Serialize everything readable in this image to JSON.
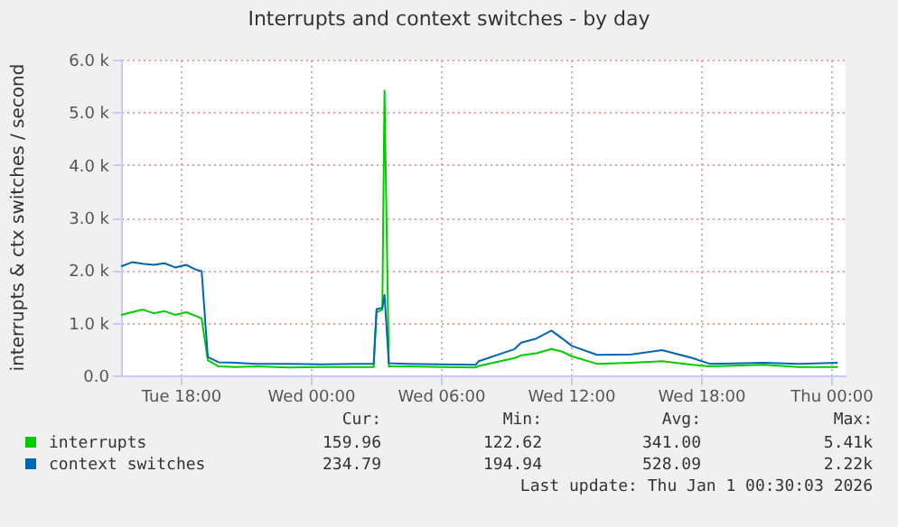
{
  "chart_data": {
    "type": "line",
    "title": "Interrupts and context switches - by day",
    "ylabel": "interrupts & ctx switches / second",
    "x": [
      "2025-12-30T15:15",
      "2025-12-30T15:45",
      "2025-12-30T16:15",
      "2025-12-30T16:45",
      "2025-12-30T17:15",
      "2025-12-30T17:45",
      "2025-12-30T18:15",
      "2025-12-30T18:45",
      "2025-12-30T18:58",
      "2025-12-30T19:15",
      "2025-12-30T19:45",
      "2025-12-30T20:30",
      "2025-12-30T21:30",
      "2025-12-30T23:00",
      "2025-12-31T00:30",
      "2025-12-31T02:00",
      "2025-12-31T02:54",
      "2025-12-31T03:02",
      "2025-12-31T03:18",
      "2025-12-31T03:24",
      "2025-12-31T03:36",
      "2025-12-31T04:30",
      "2025-12-31T06:00",
      "2025-12-31T07:36",
      "2025-12-31T07:45",
      "2025-12-31T09:24",
      "2025-12-31T09:42",
      "2025-12-31T10:24",
      "2025-12-31T11:06",
      "2025-12-31T11:36",
      "2025-12-31T12:03",
      "2025-12-31T13:12",
      "2025-12-31T14:48",
      "2025-12-31T16:12",
      "2025-12-31T17:36",
      "2025-12-31T18:24",
      "2025-12-31T20:54",
      "2025-12-31T22:30",
      "2026-01-01T00:18"
    ],
    "series": [
      {
        "name": "interrupts",
        "color": "#00cc00",
        "values": [
          1150,
          1200,
          1250,
          1180,
          1220,
          1150,
          1200,
          1120,
          1080,
          290,
          170,
          160,
          170,
          150,
          160,
          160,
          160,
          1200,
          1250,
          5410,
          170,
          170,
          160,
          150,
          180,
          330,
          380,
          420,
          500,
          450,
          360,
          220,
          240,
          270,
          200,
          170,
          200,
          160,
          160
        ]
      },
      {
        "name": "context switches",
        "color": "#0066b3",
        "values": [
          2070,
          2150,
          2120,
          2100,
          2130,
          2050,
          2100,
          2000,
          1980,
          350,
          250,
          240,
          220,
          220,
          210,
          220,
          220,
          1260,
          1280,
          1530,
          230,
          220,
          210,
          200,
          270,
          500,
          620,
          700,
          850,
          700,
          560,
          390,
          400,
          480,
          330,
          220,
          240,
          220,
          240
        ]
      }
    ],
    "xlim": [
      "2025-12-30T15:15",
      "2026-01-01T00:40"
    ],
    "xticks": [
      {
        "value": "2025-12-30T18:00",
        "label": "Tue 18:00"
      },
      {
        "value": "2025-12-31T00:00",
        "label": "Wed 00:00"
      },
      {
        "value": "2025-12-31T06:00",
        "label": "Wed 06:00"
      },
      {
        "value": "2025-12-31T12:00",
        "label": "Wed 12:00"
      },
      {
        "value": "2025-12-31T18:00",
        "label": "Wed 18:00"
      },
      {
        "value": "2026-01-01T00:00",
        "label": "Thu 00:00"
      }
    ],
    "ylim": [
      0,
      6000
    ],
    "yticks": [
      {
        "value": 0,
        "label": "0.0"
      },
      {
        "value": 1000,
        "label": "1.0 k"
      },
      {
        "value": 2000,
        "label": "2.0 k"
      },
      {
        "value": 3000,
        "label": "3.0 k"
      },
      {
        "value": 4000,
        "label": "4.0 k"
      },
      {
        "value": 5000,
        "label": "5.0 k"
      },
      {
        "value": 6000,
        "label": "6.0 k"
      }
    ],
    "grid": true,
    "legend": "bottom",
    "annotations": [
      "Cur:",
      "Min:",
      "Avg:",
      "Max:",
      "159.96",
      "122.62",
      "341.00",
      "5.41k",
      "234.79",
      "194.94",
      "528.09",
      "2.22k",
      "Last update:  Thu Jan  1 00:30:03 2026"
    ]
  }
}
